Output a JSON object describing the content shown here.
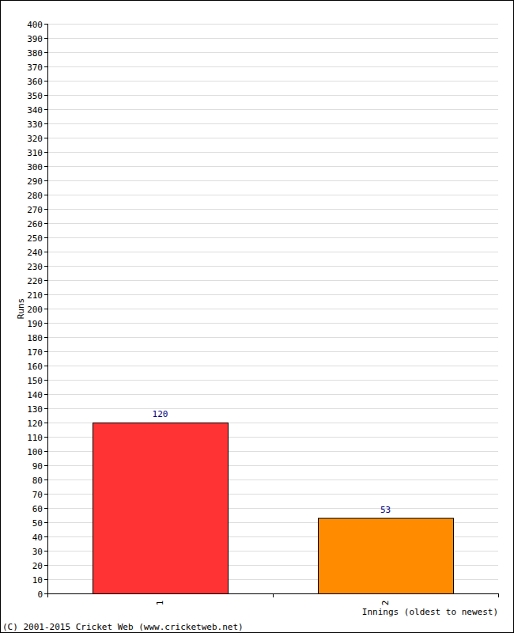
{
  "chart_data": {
    "type": "bar",
    "y_label": "Runs",
    "x_label": "Innings (oldest to newest)",
    "annotations": [
      "(C) 2001-2015 Cricket Web (www.cricketweb.net)"
    ],
    "categories": [
      "1",
      "2"
    ],
    "values": [
      120,
      53
    ],
    "colors": [
      "#ff3333",
      "#ff8c00"
    ],
    "ylim": [
      0,
      400
    ],
    "yticks": [
      0,
      10,
      20,
      30,
      40,
      50,
      60,
      70,
      80,
      90,
      100,
      110,
      120,
      130,
      140,
      150,
      160,
      170,
      180,
      190,
      200,
      210,
      220,
      230,
      240,
      250,
      260,
      270,
      280,
      290,
      300,
      310,
      320,
      330,
      340,
      350,
      360,
      370,
      380,
      390,
      400
    ],
    "grid": true,
    "data_labels": true
  }
}
